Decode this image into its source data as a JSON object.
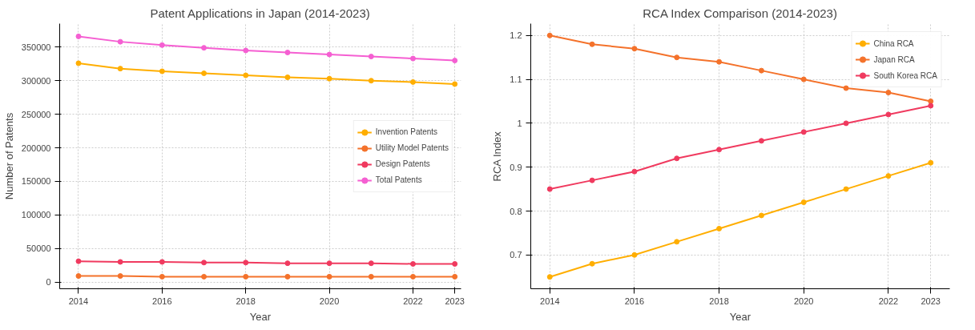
{
  "chart_data": [
    {
      "type": "line",
      "title": "Patent Applications in Japan (2014-2023)",
      "xlabel": "Year",
      "ylabel": "Number of Patents",
      "x": [
        2014,
        2015,
        2016,
        2017,
        2018,
        2019,
        2020,
        2021,
        2022,
        2023
      ],
      "series": [
        {
          "name": "Invention Patents",
          "color": "#ffae00",
          "values": [
            326000,
            318000,
            314000,
            311000,
            308000,
            305000,
            303000,
            300000,
            298000,
            295000
          ]
        },
        {
          "name": "Utility Model Patents",
          "color": "#f4722b",
          "values": [
            9000,
            9000,
            8000,
            8000,
            8000,
            8000,
            8000,
            8000,
            8000,
            8000
          ]
        },
        {
          "name": "Design Patents",
          "color": "#f03a5f",
          "values": [
            31000,
            30000,
            30000,
            29000,
            29000,
            28000,
            28000,
            28000,
            27000,
            27000
          ]
        },
        {
          "name": "Total Patents",
          "color": "#f55fd2",
          "values": [
            366000,
            358000,
            353000,
            349000,
            345000,
            342000,
            339000,
            336000,
            333000,
            330000
          ]
        }
      ],
      "xlim": [
        2013.55,
        2023.15
      ],
      "ylim": [
        -10000,
        385000
      ],
      "xticks": [
        2014,
        2016,
        2018,
        2020,
        2022,
        2023
      ],
      "yticks": [
        0,
        50000,
        100000,
        150000,
        200000,
        250000,
        300000,
        350000
      ],
      "grid": true,
      "legend": "right",
      "marker": "circle",
      "line_style": "solid"
    },
    {
      "type": "line",
      "title": "RCA Index Comparison (2014-2023)",
      "xlabel": "Year",
      "ylabel": "RCA Index",
      "x": [
        2014,
        2015,
        2016,
        2017,
        2018,
        2019,
        2020,
        2021,
        2022,
        2023
      ],
      "series": [
        {
          "name": "China RCA",
          "color": "#ffae00",
          "values": [
            0.65,
            0.68,
            0.7,
            0.73,
            0.76,
            0.79,
            0.82,
            0.85,
            0.88,
            0.91
          ]
        },
        {
          "name": "Japan RCA",
          "color": "#f4722b",
          "values": [
            1.2,
            1.18,
            1.17,
            1.15,
            1.14,
            1.12,
            1.1,
            1.08,
            1.07,
            1.05
          ]
        },
        {
          "name": "South Korea RCA",
          "color": "#f03a5f",
          "values": [
            0.85,
            0.87,
            0.89,
            0.92,
            0.94,
            0.96,
            0.98,
            1.0,
            1.02,
            1.04
          ]
        }
      ],
      "xlim": [
        2013.55,
        2023.45
      ],
      "ylim": [
        0.623,
        1.227
      ],
      "xticks": [
        2014,
        2016,
        2018,
        2020,
        2022,
        2023
      ],
      "yticks": [
        0.7,
        0.8,
        0.9,
        1.0,
        1.1,
        1.2
      ],
      "grid": true,
      "legend": "top right",
      "marker": "circle",
      "line_style": "solid"
    }
  ]
}
